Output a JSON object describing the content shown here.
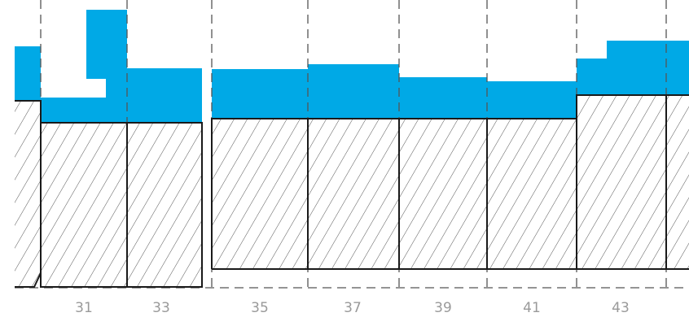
{
  "diagram": {
    "colors": {
      "snow_fill": "#00a9e6",
      "outline": "#1a1a1a",
      "hatch": "#555555",
      "grid": "#555555",
      "label": "#9a9a9a"
    },
    "x_labels": [
      "31",
      "33",
      "35",
      "37",
      "39",
      "41",
      "43"
    ]
  }
}
